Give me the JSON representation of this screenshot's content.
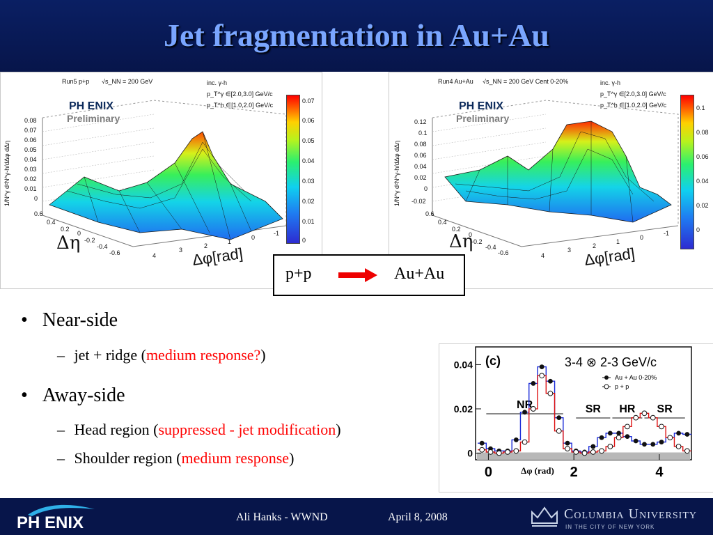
{
  "slide": {
    "title": "Jet fragmentation in Au+Au",
    "transition": {
      "from": "p+p",
      "to": "Au+Au"
    },
    "bullets": [
      {
        "text": "Near-side",
        "sub": [
          {
            "prefix": "jet + ridge (",
            "highlight": "medium response?",
            "suffix": ")"
          }
        ]
      },
      {
        "text": "Away-side",
        "sub": [
          {
            "prefix": "Head region (",
            "highlight": "suppressed - jet modification",
            "suffix": ")"
          },
          {
            "prefix": "Shoulder region (",
            "highlight": "medium response",
            "suffix": ")"
          }
        ]
      }
    ],
    "footer": {
      "author": "Ali Hanks - WWND",
      "date": "April 8, 2008",
      "left_logo": "PH ENIX",
      "right_logo": "Columbia University",
      "right_logo_sub": "IN THE CITY OF NEW YORK"
    },
    "highlight_color": "#ff0000"
  },
  "plots": {
    "left": {
      "run": "Run5 p+p",
      "energy": "√s_NN = 200 GeV",
      "trigger": "inc. γ-h",
      "pt_trig": "p_T^γ ∈[2.0,3.0] GeV/c",
      "pt_assoc": "p_T^h ∈[1.0,2.0] GeV/c",
      "brand": "PH  ENIX",
      "brand_sub": "Preliminary",
      "zlabel": "1/N^γ d²N^γ-h/dΔφ dΔη",
      "z_ticks": [
        "0.08",
        "0.07",
        "0.06",
        "0.05",
        "0.04",
        "0.03",
        "0.02",
        "0.01",
        "0"
      ],
      "bar_ticks": [
        "0.07",
        "0.06",
        "0.05",
        "0.04",
        "0.03",
        "0.02",
        "0.01",
        "0"
      ],
      "eta_ticks": [
        "0.6",
        "0.4",
        "0.2",
        "0",
        "-0.2",
        "-0.4",
        "-0.6"
      ],
      "phi_ticks": [
        "4",
        "3",
        "2",
        "1",
        "0",
        "-1"
      ],
      "eta_label": "Δη",
      "phi_label": "Δφ[rad]"
    },
    "right": {
      "run": "Run4 Au+Au",
      "energy": "√s_NN = 200 GeV  Cent 0-20%",
      "trigger": "inc. γ-h",
      "pt_trig": "p_T^γ ∈[2.0,3.0] GeV/c",
      "pt_assoc": "p_T^h ∈[1.0,2.0] GeV/c",
      "brand": "PH  ENIX",
      "brand_sub": "Preliminary",
      "zlabel": "1/N^γ d²N^γ-h/dΔφ dΔη",
      "z_ticks": [
        "0.12",
        "0.1",
        "0.08",
        "0.06",
        "0.04",
        "0.02",
        "0",
        "-0.02"
      ],
      "bar_ticks": [
        "0.1",
        "0.08",
        "0.06",
        "0.04",
        "0.02",
        "0"
      ],
      "eta_ticks": [
        "0.6",
        "0.4",
        "0.2",
        "0",
        "-0.2",
        "-0.4",
        "-0.6"
      ],
      "phi_ticks": [
        "4",
        "3",
        "2",
        "1",
        "0",
        "-1"
      ],
      "eta_label": "Δη",
      "phi_label": "Δφ[rad]"
    }
  },
  "chart_data": {
    "type": "line",
    "panel_label": "(c)",
    "title": "3-4 ⊗ 2-3 GeV/c",
    "xlabel": "Δφ (rad)",
    "x_ticks": [
      "0",
      "2",
      "4"
    ],
    "y_ticks": [
      "0.04",
      "0.02",
      "0"
    ],
    "xlim": [
      -0.3,
      4.75
    ],
    "ylim": [
      -0.003,
      0.048
    ],
    "regions": [
      "NR",
      "SR",
      "HR",
      "SR"
    ],
    "legend": [
      "Au + Au 0-20%",
      "p + p"
    ],
    "x": [
      -0.15,
      0.05,
      0.25,
      0.45,
      0.65,
      0.85,
      1.05,
      1.25,
      1.45,
      1.65,
      1.85,
      2.05,
      2.25,
      2.45,
      2.65,
      2.85,
      3.05,
      3.25,
      3.45,
      3.65,
      3.85,
      4.05,
      4.25,
      4.45,
      4.65
    ],
    "series": [
      {
        "name": "Au + Au 0-20%",
        "values": [
          0.0045,
          0.002,
          0.001,
          0.001,
          0.006,
          0.0185,
          0.0315,
          0.039,
          0.0325,
          0.016,
          0.0045,
          0.001,
          0.0005,
          0.003,
          0.007,
          0.009,
          0.009,
          0.0075,
          0.0055,
          0.004,
          0.004,
          0.005,
          0.007,
          0.009,
          0.0085
        ]
      },
      {
        "name": "p + p",
        "values": [
          0.0015,
          0.0005,
          0.0,
          0.0005,
          0.001,
          0.005,
          0.02,
          0.035,
          0.027,
          0.01,
          0.002,
          0.0005,
          0.0,
          0.0005,
          0.001,
          0.003,
          0.007,
          0.012,
          0.016,
          0.018,
          0.016,
          0.012,
          0.007,
          0.003,
          0.001
        ]
      }
    ]
  }
}
